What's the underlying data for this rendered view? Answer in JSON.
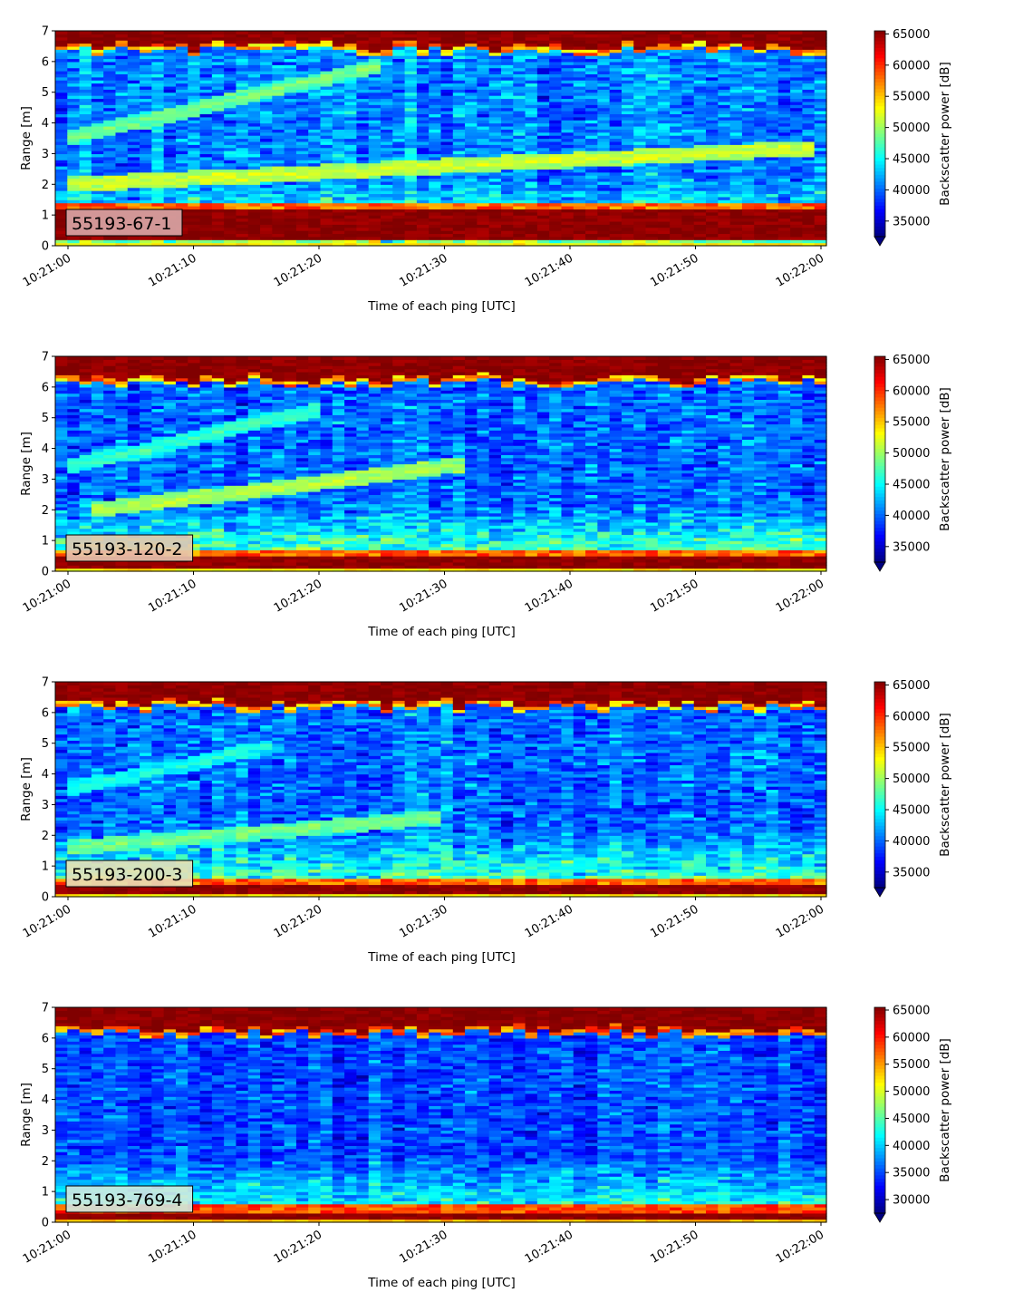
{
  "chart_data": [
    {
      "type": "heatmap",
      "tag_label": "55193-67-1",
      "xlabel": "Time of each ping [UTC]",
      "ylabel": "Range [m]",
      "x_ticks": [
        "10:21:00",
        "10:21:10",
        "10:21:20",
        "10:21:30",
        "10:21:40",
        "10:21:50",
        "10:22:00"
      ],
      "y_ticks": [
        "0",
        "1",
        "2",
        "3",
        "4",
        "5",
        "6",
        "7"
      ],
      "ylim": [
        0,
        7
      ],
      "colorbar_label": "Backscatter power [dB]",
      "colorbar_ticks": [
        "35000",
        "40000",
        "45000",
        "50000",
        "55000",
        "60000",
        "65000"
      ],
      "colorbar_range": [
        32500,
        65500
      ],
      "colormap": "jet",
      "tag_color": "#d9a7a7",
      "features": {
        "surface_band_m": [
          6.5,
          7.0
        ],
        "bottom_band_m": [
          0.25,
          1.15
        ],
        "background_level": 41000,
        "tracks": [
          {
            "from": [
              0,
              3.5
            ],
            "to": [
              25,
              5.9
            ],
            "level": 49000
          },
          {
            "from": [
              0,
              2.0
            ],
            "to": [
              60,
              3.2
            ],
            "level": 52000
          }
        ],
        "near_bottom_level": 50000
      }
    },
    {
      "type": "heatmap",
      "tag_label": "55193-120-2",
      "xlabel": "Time of each ping [UTC]",
      "ylabel": "Range [m]",
      "x_ticks": [
        "10:21:00",
        "10:21:10",
        "10:21:20",
        "10:21:30",
        "10:21:40",
        "10:21:50",
        "10:22:00"
      ],
      "y_ticks": [
        "0",
        "1",
        "2",
        "3",
        "4",
        "5",
        "6",
        "7"
      ],
      "ylim": [
        0,
        7
      ],
      "colorbar_label": "Backscatter power [dB]",
      "colorbar_ticks": [
        "35000",
        "40000",
        "45000",
        "50000",
        "55000",
        "60000",
        "65000"
      ],
      "colorbar_range": [
        32500,
        65500
      ],
      "colormap": "jet",
      "tag_color": "#e6c7b0",
      "features": {
        "surface_band_m": [
          6.3,
          7.0
        ],
        "bottom_band_m": [
          0.1,
          0.5
        ],
        "background_level": 40000,
        "tracks": [
          {
            "from": [
              0,
              3.4
            ],
            "to": [
              20,
              5.3
            ],
            "level": 47000
          },
          {
            "from": [
              2,
              2.0
            ],
            "to": [
              32,
              3.5
            ],
            "level": 51000
          }
        ],
        "near_bottom_level": 52000
      }
    },
    {
      "type": "heatmap",
      "tag_label": "55193-200-3",
      "xlabel": "Time of each ping [UTC]",
      "ylabel": "Range [m]",
      "x_ticks": [
        "10:21:00",
        "10:21:10",
        "10:21:20",
        "10:21:30",
        "10:21:40",
        "10:21:50",
        "10:22:00"
      ],
      "y_ticks": [
        "0",
        "1",
        "2",
        "3",
        "4",
        "5",
        "6",
        "7"
      ],
      "ylim": [
        0,
        7
      ],
      "colorbar_label": "Backscatter power [dB]",
      "colorbar_ticks": [
        "35000",
        "40000",
        "45000",
        "50000",
        "55000",
        "60000",
        "65000"
      ],
      "colorbar_range": [
        32500,
        65500
      ],
      "colormap": "jet",
      "tag_color": "#e8dfb8",
      "features": {
        "surface_band_m": [
          6.3,
          7.0
        ],
        "bottom_band_m": [
          0.1,
          0.4
        ],
        "background_level": 40000,
        "tracks": [
          {
            "from": [
              0,
              3.5
            ],
            "to": [
              16,
              4.9
            ],
            "level": 46000
          },
          {
            "from": [
              0,
              1.6
            ],
            "to": [
              30,
              2.6
            ],
            "level": 49000
          }
        ],
        "near_bottom_level": 51000
      }
    },
    {
      "type": "heatmap",
      "tag_label": "55193-769-4",
      "xlabel": "Time of each ping [UTC]",
      "ylabel": "Range [m]",
      "x_ticks": [
        "10:21:00",
        "10:21:10",
        "10:21:20",
        "10:21:30",
        "10:21:40",
        "10:21:50",
        "10:22:00"
      ],
      "y_ticks": [
        "0",
        "1",
        "2",
        "3",
        "4",
        "5",
        "6",
        "7"
      ],
      "ylim": [
        0,
        7
      ],
      "colorbar_label": "Backscatter power [dB]",
      "colorbar_ticks": [
        "30000",
        "35000",
        "40000",
        "45000",
        "50000",
        "55000",
        "60000",
        "65000"
      ],
      "colorbar_range": [
        27500,
        65500
      ],
      "colormap": "jet",
      "tag_color": "#cfe9e0",
      "features": {
        "surface_band_m": [
          6.3,
          6.7
        ],
        "bottom_band_m": [
          0.15,
          0.35
        ],
        "background_level": 35000,
        "tracks": [],
        "near_bottom_level": 46000
      }
    }
  ]
}
